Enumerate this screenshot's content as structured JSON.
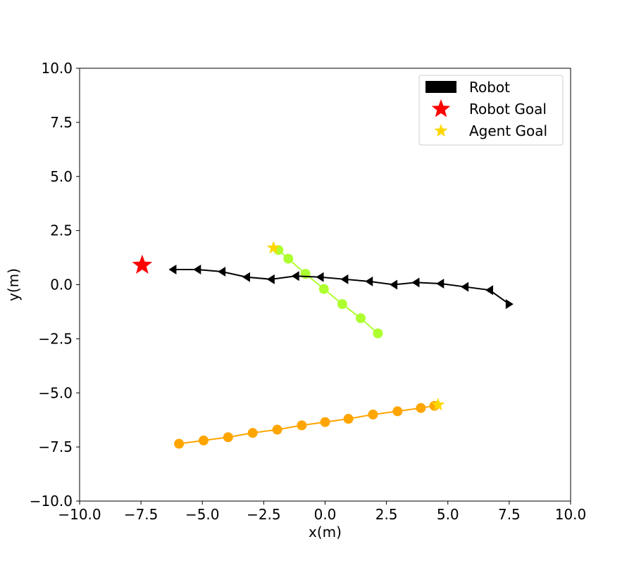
{
  "chart_data": {
    "type": "scatter",
    "title": "",
    "xlabel": "x(m)",
    "ylabel": "y(m)",
    "xlim": [
      -10,
      10
    ],
    "ylim": [
      -10,
      10
    ],
    "grid": false,
    "legend_position": "top-right",
    "x_ticks": [
      "−10.0",
      "−7.5",
      "−5.0",
      "−2.5",
      "0.0",
      "2.5",
      "5.0",
      "7.5",
      "10.0"
    ],
    "y_ticks": [
      "10.0",
      "7.5",
      "5.0",
      "2.5",
      "0.0",
      "−2.5",
      "−5.0",
      "−7.5",
      "−10.0"
    ],
    "legend": [
      {
        "label": "Robot",
        "marker": "rectangle",
        "color": "#000000"
      },
      {
        "label": "Robot Goal",
        "marker": "star",
        "color": "#ff0000"
      },
      {
        "label": "Agent Goal",
        "marker": "star",
        "color": "#ffd700"
      }
    ],
    "robot": {
      "color": "#000000",
      "marker": "left-pointing-triangle",
      "path": [
        {
          "x": 7.5,
          "y": -0.9
        },
        {
          "x": 6.7,
          "y": -0.25
        },
        {
          "x": 5.7,
          "y": -0.1
        },
        {
          "x": 4.7,
          "y": 0.05
        },
        {
          "x": 3.7,
          "y": 0.1
        },
        {
          "x": 2.8,
          "y": 0.0
        },
        {
          "x": 1.8,
          "y": 0.15
        },
        {
          "x": 0.8,
          "y": 0.25
        },
        {
          "x": -0.2,
          "y": 0.35
        },
        {
          "x": -1.2,
          "y": 0.4
        },
        {
          "x": -2.2,
          "y": 0.25
        },
        {
          "x": -3.2,
          "y": 0.35
        },
        {
          "x": -4.2,
          "y": 0.6
        },
        {
          "x": -5.2,
          "y": 0.7
        },
        {
          "x": -6.2,
          "y": 0.7
        }
      ]
    },
    "robot_goal": {
      "x": -7.45,
      "y": 0.9,
      "color": "#ff0000"
    },
    "agents": [
      {
        "color": "#adff2f",
        "points": [
          {
            "x": 2.15,
            "y": -2.25
          },
          {
            "x": 1.45,
            "y": -1.55
          },
          {
            "x": 0.7,
            "y": -0.9
          },
          {
            "x": -0.05,
            "y": -0.2
          },
          {
            "x": -0.8,
            "y": 0.5
          },
          {
            "x": -1.5,
            "y": 1.2
          },
          {
            "x": -1.9,
            "y": 1.6
          }
        ],
        "goal": {
          "x": -2.1,
          "y": 1.7
        }
      },
      {
        "color": "#ffa500",
        "points": [
          {
            "x": -5.95,
            "y": -7.35
          },
          {
            "x": -4.95,
            "y": -7.2
          },
          {
            "x": -3.95,
            "y": -7.05
          },
          {
            "x": -2.95,
            "y": -6.85
          },
          {
            "x": -1.95,
            "y": -6.7
          },
          {
            "x": -0.95,
            "y": -6.5
          },
          {
            "x": 0.0,
            "y": -6.35
          },
          {
            "x": 0.95,
            "y": -6.2
          },
          {
            "x": 1.95,
            "y": -6.0
          },
          {
            "x": 2.95,
            "y": -5.85
          },
          {
            "x": 3.9,
            "y": -5.7
          },
          {
            "x": 4.45,
            "y": -5.6
          }
        ],
        "goal": {
          "x": 4.6,
          "y": -5.55
        }
      }
    ]
  }
}
